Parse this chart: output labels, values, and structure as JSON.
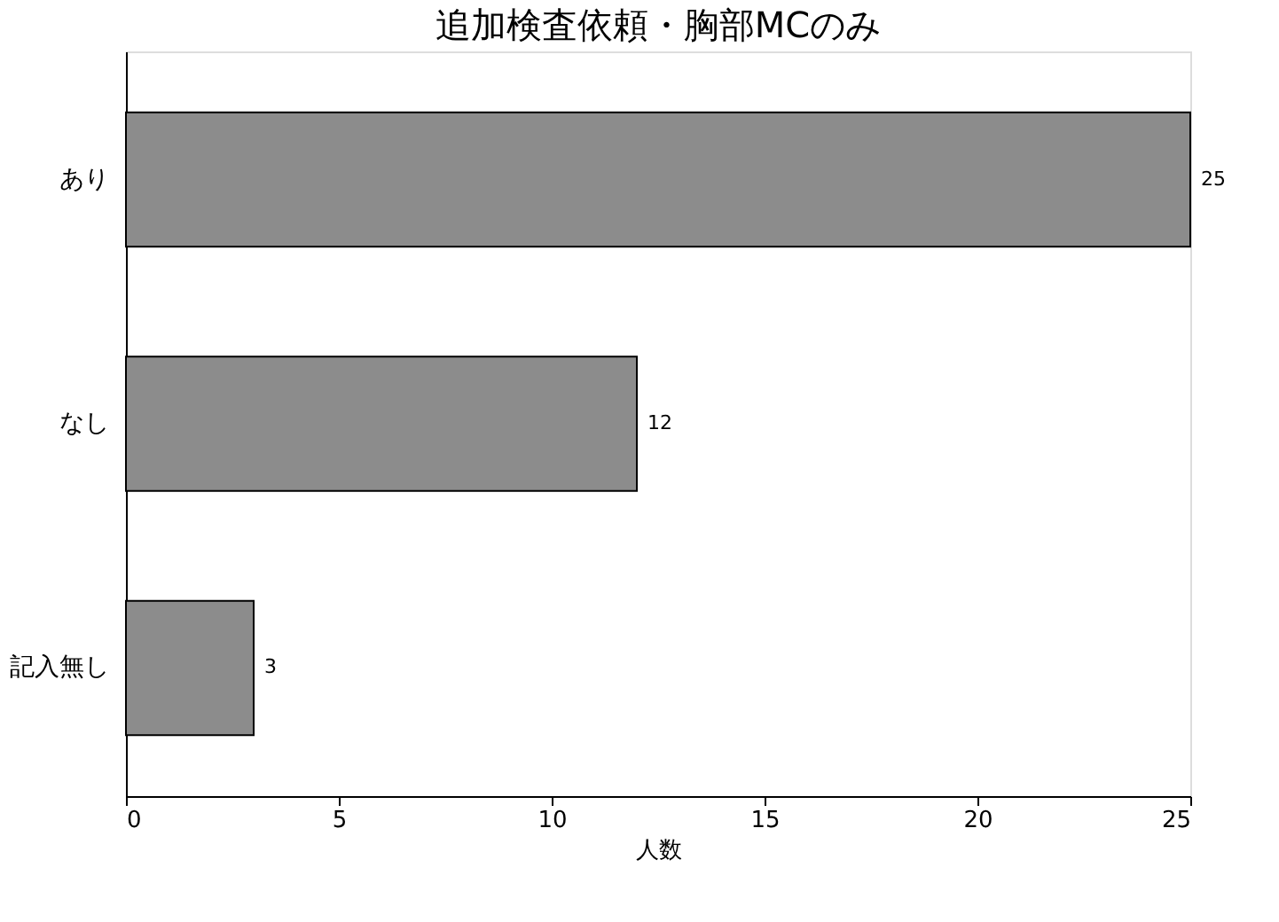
{
  "chart_data": {
    "type": "bar",
    "orientation": "horizontal",
    "title": "追加検査依頼・胸部MCのみ",
    "xlabel": "人数",
    "categories": [
      "あり",
      "なし",
      "記入無し"
    ],
    "values": [
      25,
      12,
      3
    ],
    "color": "#8c8c8c",
    "xlim": [
      0,
      25
    ],
    "xticks": [
      0,
      5,
      10,
      15,
      20,
      25
    ],
    "data_labels": true,
    "grid": false
  }
}
